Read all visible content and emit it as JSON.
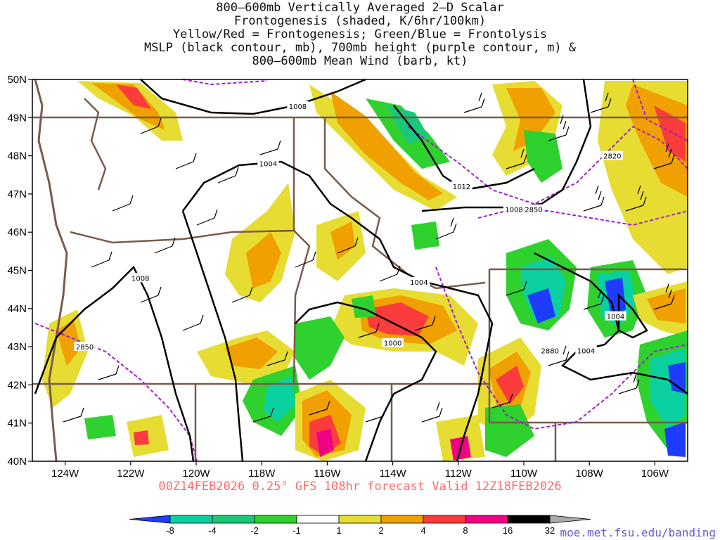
{
  "title_lines": [
    "800–600mb Vertically Averaged 2–D Scalar",
    "Frontogenesis (shaded, K/6hr/100km)",
    "Yellow/Red = Frontogenesis;  Green/Blue = Frontolysis",
    "MSLP (black contour, mb), 700mb height (purple contour, m) &",
    "800–600mb Mean Wind (barb, kt)"
  ],
  "lat_labels": [
    "50N",
    "49N",
    "48N",
    "47N",
    "46N",
    "45N",
    "44N",
    "43N",
    "42N",
    "41N",
    "40N"
  ],
  "lon_labels": [
    "124W",
    "122W",
    "120W",
    "118W",
    "116W",
    "114W",
    "112W",
    "110W",
    "108W",
    "106W"
  ],
  "contour_labels": [
    {
      "text": "1008",
      "lon": -116.9,
      "lat": 49.3
    },
    {
      "text": "1004",
      "lon": -117.8,
      "lat": 47.8
    },
    {
      "text": "1012",
      "lon": -111.9,
      "lat": 47.2
    },
    {
      "text": "1008",
      "lon": -110.3,
      "lat": 46.6
    },
    {
      "text": "2850",
      "lon": -109.7,
      "lat": 46.6
    },
    {
      "text": "2820",
      "lon": -107.3,
      "lat": 48.0
    },
    {
      "text": "1008",
      "lon": -121.7,
      "lat": 44.8
    },
    {
      "text": "1004",
      "lon": -113.2,
      "lat": 44.7
    },
    {
      "text": "1004",
      "lon": -107.2,
      "lat": 43.8
    },
    {
      "text": "2850",
      "lon": -123.4,
      "lat": 43.0
    },
    {
      "text": "1000",
      "lon": -114.0,
      "lat": 43.1
    },
    {
      "text": "2880",
      "lon": -109.2,
      "lat": 42.9
    },
    {
      "text": "1004",
      "lon": -108.1,
      "lat": 42.9
    }
  ],
  "valid_text": "00Z14FEB2026 0.25° GFS 108hr forecast Valid 12Z18FEB2026",
  "colorbar": {
    "colors": [
      "#1e3cff",
      "#0ad0a0",
      "#19c87a",
      "#2ed12e",
      "#ffffff",
      "#e6dc32",
      "#f0a000",
      "#fa3c3c",
      "#f00082",
      "#000000",
      "#aaaaaa"
    ],
    "labels": [
      "-8",
      "-4",
      "-2",
      "-1",
      "1",
      "2",
      "4",
      "8",
      "16",
      "32"
    ]
  },
  "credit": "moe.met.fsu.edu/banding"
}
